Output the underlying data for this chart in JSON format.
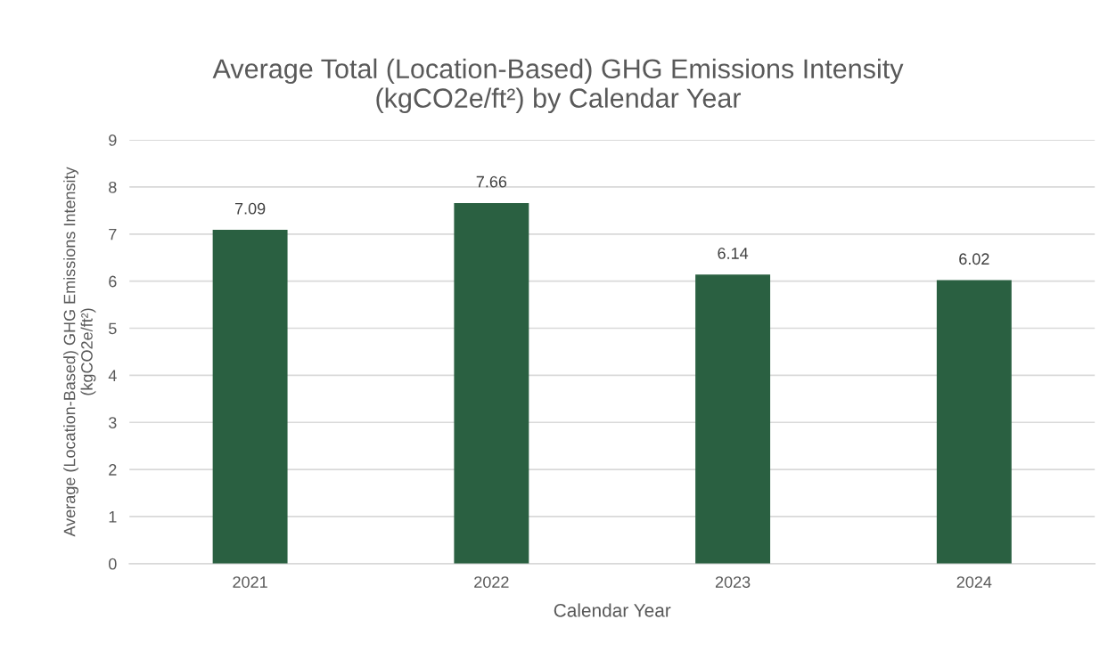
{
  "chart_data": {
    "type": "bar",
    "title": "Average Total (Location-Based) GHG Emissions Intensity\n(kgCO2e/ft²) by Calendar Year",
    "xlabel": "Calendar Year",
    "ylabel": "Average (Location-Based) GHG Emissions Intensity\n(kgCO2e/ft²)",
    "categories": [
      "2021",
      "2022",
      "2023",
      "2024"
    ],
    "values": [
      7.09,
      7.66,
      6.14,
      6.02
    ],
    "color": "#2a6041",
    "data_labels": true,
    "ylim": [
      0,
      9
    ],
    "yticks": [
      0,
      1,
      2,
      3,
      4,
      5,
      6,
      7,
      8,
      9
    ],
    "grid": "y",
    "legend": false
  }
}
